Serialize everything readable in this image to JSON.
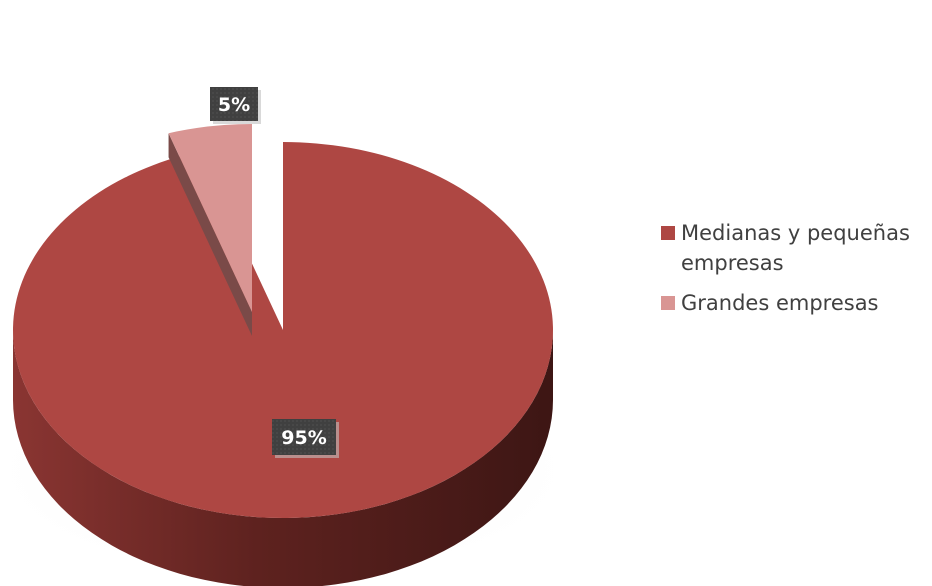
{
  "chart_data": {
    "type": "pie",
    "style": "3d-exploded",
    "title": "",
    "slices": [
      {
        "label": "Medianas y pequeñas empresas",
        "value": 95,
        "data_label": "95%",
        "color": "#ae4743",
        "side_color": "#6e2a27"
      },
      {
        "label": "Grandes empresas",
        "value": 5,
        "data_label": "5%",
        "color": "#d99593",
        "side_color": "#7a4a48"
      }
    ],
    "legend_position": "right",
    "data_label_background": "#404040"
  }
}
